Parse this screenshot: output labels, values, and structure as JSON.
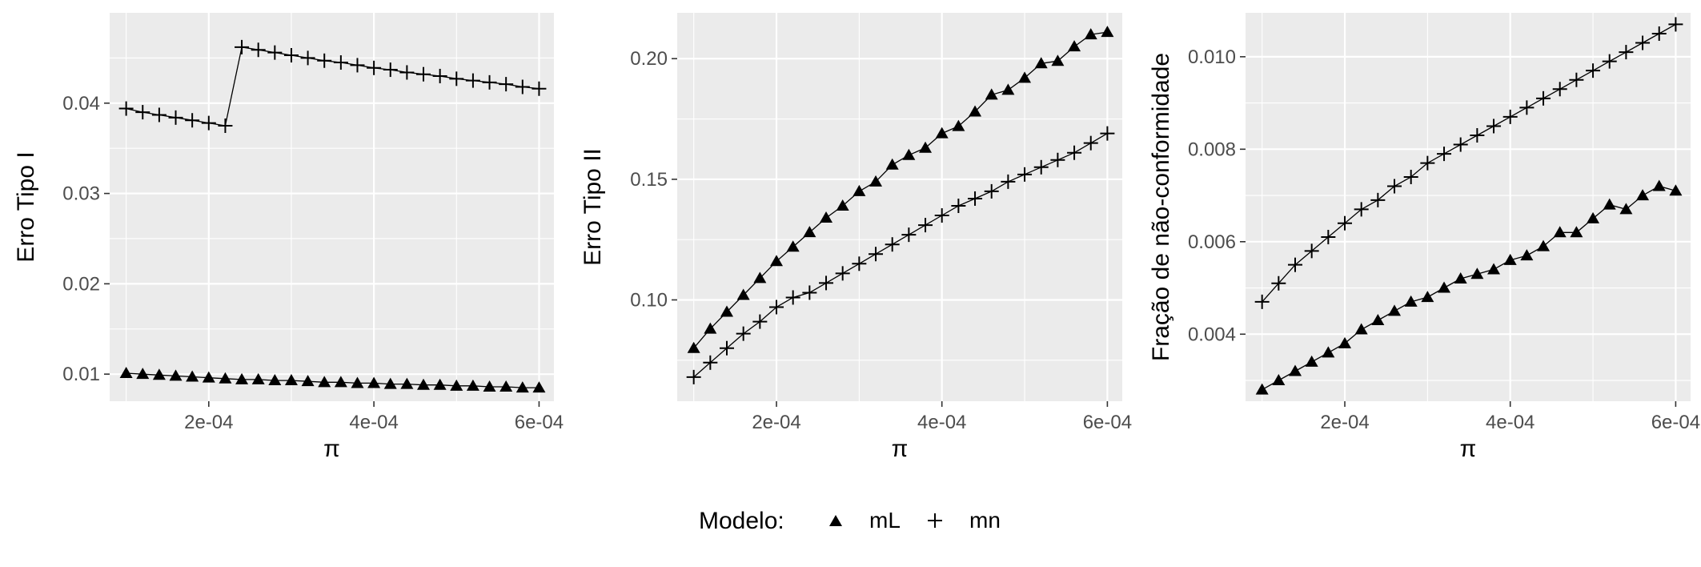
{
  "legend": {
    "title": "Modelo:",
    "placement": "bottom",
    "entries": [
      {
        "name": "mL",
        "shape": "triangle-icon"
      },
      {
        "name": "mn",
        "shape": "plus-icon"
      }
    ]
  },
  "colors": {
    "panel": "#EBEBEB",
    "grid": "#FFFFFF",
    "marks": "#000000",
    "tick_text": "#4D4D4D"
  },
  "chart_data": [
    {
      "type": "line",
      "xlabel": "π",
      "ylabel": "Erro Tipo I",
      "grid": true,
      "xlim": [
        8e-05,
        0.000618
      ],
      "ylim": [
        0.007,
        0.05
      ],
      "xticks": [
        0.0002,
        0.0004,
        0.0006
      ],
      "xtick_labels": [
        "2e-04",
        "4e-04",
        "6e-04"
      ],
      "yticks": [
        0.01,
        0.02,
        0.03,
        0.04
      ],
      "ytick_labels": [
        "0.01",
        "0.02",
        "0.03",
        "0.04"
      ],
      "x": [
        0.0001,
        0.00012,
        0.00014,
        0.00016,
        0.00018,
        0.0002,
        0.00022,
        0.00024,
        0.00026,
        0.00028,
        0.0003,
        0.00032,
        0.00034,
        0.00036,
        0.00038,
        0.0004,
        0.00042,
        0.00044,
        0.00046,
        0.00048,
        0.0005,
        0.00052,
        0.00054,
        0.00056,
        0.00058,
        0.0006
      ],
      "series": [
        {
          "name": "mL",
          "values": [
            0.0101,
            0.01,
            0.0099,
            0.0098,
            0.0097,
            0.0096,
            0.0095,
            0.0094,
            0.0094,
            0.0093,
            0.0093,
            0.0092,
            0.0091,
            0.0091,
            0.009,
            0.009,
            0.0089,
            0.0089,
            0.0088,
            0.0088,
            0.0087,
            0.0087,
            0.0086,
            0.0086,
            0.0085,
            0.0085
          ]
        },
        {
          "name": "mn",
          "values": [
            0.0394,
            0.039,
            0.0387,
            0.0384,
            0.0381,
            0.0378,
            0.0375,
            0.0462,
            0.0459,
            0.0456,
            0.0453,
            0.045,
            0.0447,
            0.0445,
            0.0442,
            0.0439,
            0.0437,
            0.0434,
            0.0432,
            0.043,
            0.0427,
            0.0425,
            0.0423,
            0.0421,
            0.0418,
            0.0416
          ]
        }
      ]
    },
    {
      "type": "line",
      "xlabel": "π",
      "ylabel": "Erro Tipo II",
      "grid": true,
      "xlim": [
        8e-05,
        0.000618
      ],
      "ylim": [
        0.058,
        0.219
      ],
      "xticks": [
        0.0002,
        0.0004,
        0.0006
      ],
      "xtick_labels": [
        "2e-04",
        "4e-04",
        "6e-04"
      ],
      "yticks": [
        0.1,
        0.15,
        0.2
      ],
      "ytick_labels": [
        "0.10",
        "0.15",
        "0.20"
      ],
      "x": [
        0.0001,
        0.00012,
        0.00014,
        0.00016,
        0.00018,
        0.0002,
        0.00022,
        0.00024,
        0.00026,
        0.00028,
        0.0003,
        0.00032,
        0.00034,
        0.00036,
        0.00038,
        0.0004,
        0.00042,
        0.00044,
        0.00046,
        0.00048,
        0.0005,
        0.00052,
        0.00054,
        0.00056,
        0.00058,
        0.0006
      ],
      "series": [
        {
          "name": "mL",
          "values": [
            0.08,
            0.088,
            0.095,
            0.102,
            0.109,
            0.116,
            0.122,
            0.128,
            0.134,
            0.139,
            0.145,
            0.149,
            0.156,
            0.16,
            0.163,
            0.169,
            0.172,
            0.178,
            0.185,
            0.187,
            0.192,
            0.198,
            0.199,
            0.205,
            0.21,
            0.211
          ]
        },
        {
          "name": "mn",
          "values": [
            0.068,
            0.074,
            0.08,
            0.086,
            0.091,
            0.097,
            0.101,
            0.103,
            0.107,
            0.111,
            0.115,
            0.119,
            0.123,
            0.127,
            0.131,
            0.135,
            0.139,
            0.142,
            0.145,
            0.149,
            0.152,
            0.155,
            0.158,
            0.161,
            0.165,
            0.169
          ]
        }
      ]
    },
    {
      "type": "line",
      "xlabel": "π",
      "ylabel": "Fração de não-conformidade",
      "grid": true,
      "xlim": [
        8e-05,
        0.000618
      ],
      "ylim": [
        0.00255,
        0.01095
      ],
      "xticks": [
        0.0002,
        0.0004,
        0.0006
      ],
      "xtick_labels": [
        "2e-04",
        "4e-04",
        "6e-04"
      ],
      "yticks": [
        0.004,
        0.006,
        0.008,
        0.01
      ],
      "ytick_labels": [
        "0.004",
        "0.006",
        "0.008",
        "0.010"
      ],
      "x": [
        0.0001,
        0.00012,
        0.00014,
        0.00016,
        0.00018,
        0.0002,
        0.00022,
        0.00024,
        0.00026,
        0.00028,
        0.0003,
        0.00032,
        0.00034,
        0.00036,
        0.00038,
        0.0004,
        0.00042,
        0.00044,
        0.00046,
        0.00048,
        0.0005,
        0.00052,
        0.00054,
        0.00056,
        0.00058,
        0.0006
      ],
      "series": [
        {
          "name": "mL",
          "values": [
            0.0028,
            0.003,
            0.0032,
            0.0034,
            0.0036,
            0.0038,
            0.0041,
            0.0043,
            0.0045,
            0.0047,
            0.0048,
            0.005,
            0.0052,
            0.0053,
            0.0054,
            0.0056,
            0.0057,
            0.0059,
            0.0062,
            0.0062,
            0.0065,
            0.0068,
            0.0067,
            0.007,
            0.0072,
            0.0071
          ]
        },
        {
          "name": "mn",
          "values": [
            0.0047,
            0.0051,
            0.0055,
            0.0058,
            0.0061,
            0.0064,
            0.0067,
            0.0069,
            0.0072,
            0.0074,
            0.0077,
            0.0079,
            0.0081,
            0.0083,
            0.0085,
            0.0087,
            0.0089,
            0.0091,
            0.0093,
            0.0095,
            0.0097,
            0.0099,
            0.0101,
            0.0103,
            0.0105,
            0.0107
          ]
        }
      ]
    }
  ]
}
